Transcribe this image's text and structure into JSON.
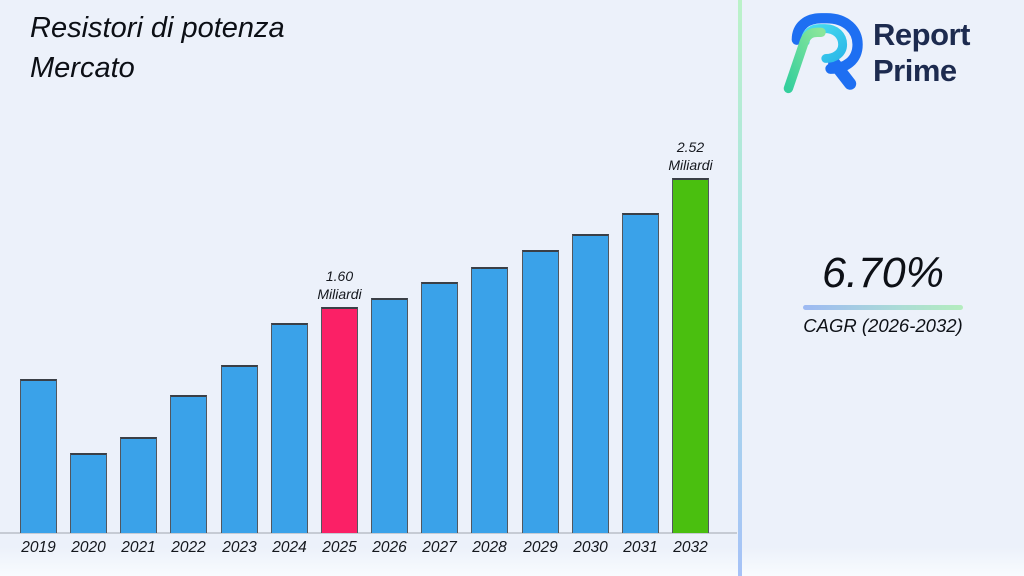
{
  "title": {
    "line1": "Resistori di potenza",
    "line2": "Mercato"
  },
  "logo": {
    "line1": "Report",
    "line2": "Prime",
    "navy": "#1d2b4f",
    "blue": "#1e6ff2",
    "cyan": "#3fd0ea",
    "green": "#7de39b"
  },
  "cagr": {
    "value": "6.70%",
    "label": "CAGR (2026-2032)"
  },
  "chart_data": {
    "type": "bar",
    "title": "Resistori di potenza Mercato",
    "unit": "Miliardi",
    "categories": [
      "2019",
      "2020",
      "2021",
      "2022",
      "2023",
      "2024",
      "2025",
      "2026",
      "2027",
      "2028",
      "2029",
      "2030",
      "2031",
      "2032"
    ],
    "values": [
      1.09,
      0.57,
      0.68,
      0.98,
      1.19,
      1.49,
      1.6,
      1.67,
      1.78,
      1.89,
      2.01,
      2.12,
      2.27,
      2.52
    ],
    "ylim": [
      0,
      2.7
    ],
    "grid": false,
    "legend": false,
    "xlabel": "",
    "ylabel": "",
    "bar_colors": {
      "default": "#3aa2e9",
      "2025": "#fb2066",
      "2032": "#4abf0f"
    },
    "annotations": [
      {
        "category": "2025",
        "lines": [
          "1.60",
          "Miliardi"
        ]
      },
      {
        "category": "2032",
        "lines": [
          "2.52",
          "Miliardi"
        ]
      }
    ]
  }
}
